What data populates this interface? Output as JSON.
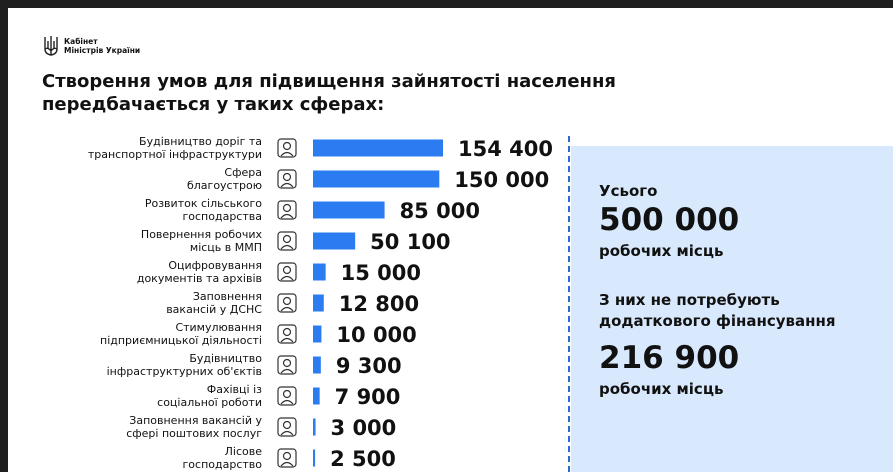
{
  "header": {
    "org_name": "Кабінет\nМіністрів України",
    "title": "Створення умов для підвищення зайнятості населення передбачається у таких сферах:"
  },
  "colors": {
    "bar": "#2a7cf0",
    "panel": "#d9e9fd",
    "divider": "#2a6ad6"
  },
  "chart_data": {
    "type": "bar",
    "orientation": "horizontal",
    "categories": [
      [
        "Будівництво доріг та",
        "транспортної інфраструктури"
      ],
      [
        "Сфера",
        "благоустрою"
      ],
      [
        "Розвиток сільського",
        "господарства"
      ],
      [
        "Повернення робочих",
        "місць в ММП"
      ],
      [
        "Оцифровування",
        "документів та архівів"
      ],
      [
        "Заповнення",
        "вакансій у ДСНС"
      ],
      [
        "Стимулювання",
        "підприємницької діяльності"
      ],
      [
        "Будівництво",
        "інфраструктурних об'єктів"
      ],
      [
        "Фахівці із",
        "соціальної роботи"
      ],
      [
        "Заповнення вакансій у",
        "сфері поштових послуг"
      ],
      [
        "Лісове",
        "господарство"
      ]
    ],
    "values": [
      154400,
      150000,
      85000,
      50100,
      15000,
      12800,
      10000,
      9300,
      7900,
      3000,
      2500
    ],
    "value_labels": [
      "154 400",
      "150 000",
      "85 000",
      "50 100",
      "15 000",
      "12 800",
      "10 000",
      "9 300",
      "7 900",
      "3 000",
      "2 500"
    ],
    "icons": [
      "road-construction-icon",
      "safety-vest-icon",
      "farm-produce-icon",
      "worker-return-icon",
      "document-scan-icon",
      "rescuer-icon",
      "shop-icon",
      "building-icon",
      "helping-hands-icon",
      "mail-icon",
      "forest-icon"
    ],
    "xlim": [
      0,
      154400
    ],
    "grid": false,
    "legend": "none"
  },
  "summary": {
    "total_label": "Усього",
    "total_value": "500 000",
    "total_unit": "робочих місць",
    "nofund_label": "З них не потребують\nдодаткового фінансування",
    "nofund_value": "216 900",
    "nofund_unit": "робочих місць"
  }
}
